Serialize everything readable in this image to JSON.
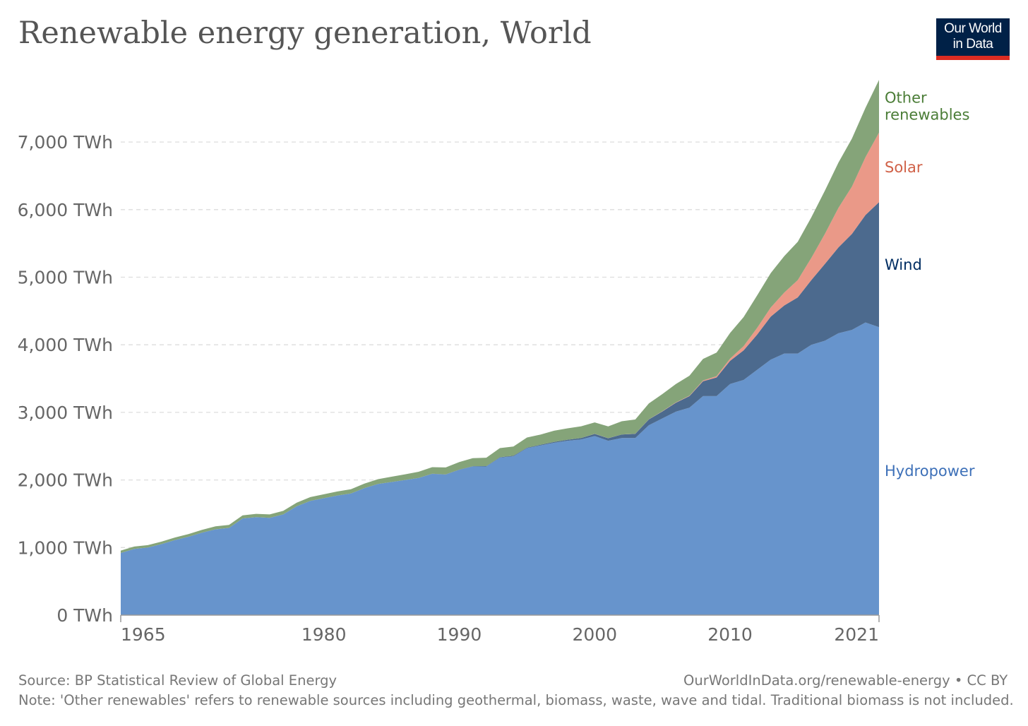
{
  "header": {
    "title": "Renewable energy generation, World",
    "logo_line1": "Our World",
    "logo_line2": "in Data"
  },
  "footer": {
    "source": "Source: BP Statistical Review of Global Energy",
    "url": "OurWorldInData.org/renewable-energy • CC BY",
    "note": "Note: 'Other renewables' refers to renewable sources including geothermal, biomass, waste, wave and tidal. Traditional biomass is not included."
  },
  "colors": {
    "hydropower": "#6794cc",
    "wind": "#4c6a8e",
    "solar": "#ea9988",
    "other": "#85a479",
    "hydropower_label": "#3d70b8",
    "wind_label": "#002d62",
    "solar_label": "#d06147",
    "other_label": "#4b7d37"
  },
  "chart_data": {
    "type": "area",
    "stacked": true,
    "title": "Renewable energy generation, World",
    "xlabel": "",
    "ylabel": "",
    "x": [
      1965,
      1966,
      1967,
      1968,
      1969,
      1970,
      1971,
      1972,
      1973,
      1974,
      1975,
      1976,
      1977,
      1978,
      1979,
      1980,
      1981,
      1982,
      1983,
      1984,
      1985,
      1986,
      1987,
      1988,
      1989,
      1990,
      1991,
      1992,
      1993,
      1994,
      1995,
      1996,
      1997,
      1998,
      1999,
      2000,
      2001,
      2002,
      2003,
      2004,
      2005,
      2006,
      2007,
      2008,
      2009,
      2010,
      2011,
      2012,
      2013,
      2014,
      2015,
      2016,
      2017,
      2018,
      2019,
      2020,
      2021
    ],
    "xlim": [
      1965,
      2021
    ],
    "ylim": [
      0,
      8000
    ],
    "x_ticks": [
      "1965",
      "1980",
      "1990",
      "2000",
      "2010",
      "2021"
    ],
    "y_ticks": [
      {
        "value": 0,
        "label": "0 TWh"
      },
      {
        "value": 1000,
        "label": "1,000 TWh"
      },
      {
        "value": 2000,
        "label": "2,000 TWh"
      },
      {
        "value": 3000,
        "label": "3,000 TWh"
      },
      {
        "value": 4000,
        "label": "4,000 TWh"
      },
      {
        "value": 5000,
        "label": "5,000 TWh"
      },
      {
        "value": 6000,
        "label": "6,000 TWh"
      },
      {
        "value": 7000,
        "label": "7,000 TWh"
      }
    ],
    "grid": true,
    "legend": "labels at right end of series",
    "series": [
      {
        "name": "Hydropower",
        "values": [
          920,
          980,
          1000,
          1050,
          1110,
          1160,
          1220,
          1270,
          1290,
          1430,
          1450,
          1440,
          1490,
          1610,
          1690,
          1730,
          1770,
          1800,
          1880,
          1940,
          1970,
          2000,
          2030,
          2090,
          2080,
          2150,
          2200,
          2200,
          2330,
          2350,
          2470,
          2510,
          2550,
          2580,
          2600,
          2650,
          2580,
          2620,
          2620,
          2810,
          2910,
          3010,
          3070,
          3240,
          3240,
          3420,
          3480,
          3630,
          3780,
          3870,
          3870,
          4000,
          4060,
          4170,
          4220,
          4330,
          4260
        ]
      },
      {
        "name": "Wind",
        "values": [
          0,
          0,
          0,
          0,
          0,
          0,
          0,
          0,
          0,
          0,
          0,
          0,
          0,
          0,
          0,
          0,
          0,
          0,
          0,
          0,
          0,
          0,
          0,
          3,
          3,
          4,
          4,
          5,
          6,
          8,
          8,
          10,
          12,
          16,
          21,
          31,
          38,
          52,
          63,
          85,
          104,
          132,
          170,
          220,
          276,
          342,
          437,
          521,
          636,
          712,
          831,
          957,
          1135,
          1270,
          1420,
          1590,
          1850
        ]
      },
      {
        "name": "Solar",
        "values": [
          0,
          0,
          0,
          0,
          0,
          0,
          0,
          0,
          0,
          0,
          0,
          0,
          0,
          0,
          0,
          0,
          0,
          0,
          0,
          0,
          0,
          0,
          0,
          0,
          0,
          0,
          0,
          0,
          0,
          0,
          0,
          0,
          0,
          0,
          0,
          1,
          1,
          1,
          1,
          2,
          4,
          5,
          7,
          12,
          20,
          32,
          63,
          99,
          135,
          190,
          256,
          328,
          445,
          585,
          700,
          855,
          1030
        ]
      },
      {
        "name": "Other renewables",
        "values": [
          35,
          35,
          36,
          37,
          38,
          40,
          42,
          44,
          45,
          47,
          48,
          50,
          52,
          55,
          56,
          58,
          60,
          63,
          67,
          72,
          78,
          84,
          91,
          96,
          102,
          110,
          118,
          124,
          135,
          136,
          150,
          151,
          166,
          168,
          173,
          170,
          174,
          195,
          210,
          235,
          253,
          272,
          295,
          318,
          348,
          380,
          430,
          480,
          510,
          540,
          566,
          601,
          640,
          670,
          710,
          730,
          780
        ]
      }
    ]
  }
}
